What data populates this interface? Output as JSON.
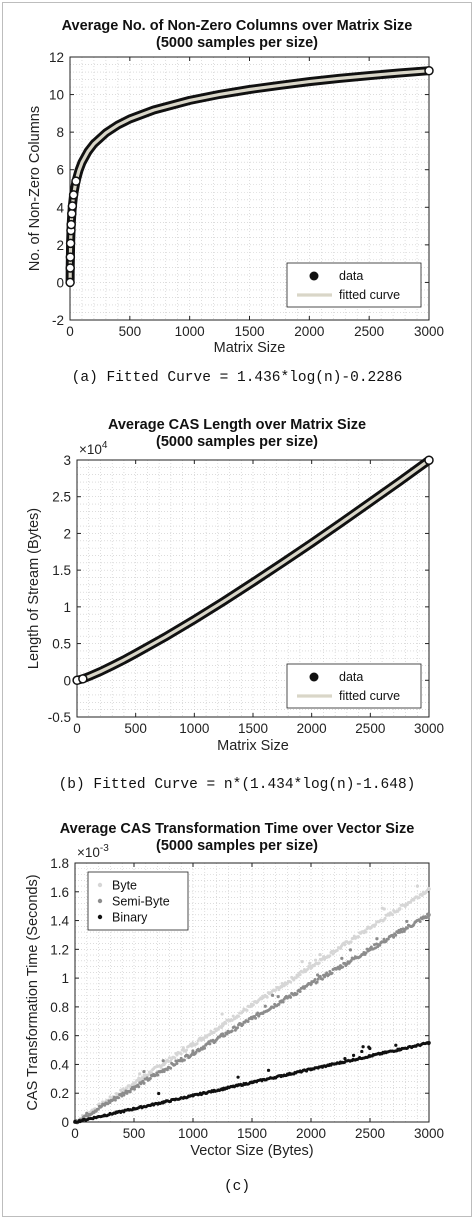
{
  "captions": [
    "(a) Fitted Curve = 1.436*log(n)-0.2286",
    "(b) Fitted Curve = n*(1.434*log(n)-1.648)",
    "(c)"
  ],
  "colors": {
    "data_marker": "#111111",
    "fitted_curve": "#d9d6c8",
    "byte": "#d6d6d6",
    "semi_byte": "#8c8c8c",
    "binary": "#111111"
  },
  "chart_data": [
    {
      "type": "line",
      "title": "Average No. of Non-Zero Columns over Matrix Size",
      "subtitle": "(5000 samples per size)",
      "xlabel": "Matrix Size",
      "ylabel": "No. of Non-Zero Columns",
      "xlim": [
        0,
        3000
      ],
      "ylim": [
        -2,
        12
      ],
      "xticks": [
        "0",
        "500",
        "1000",
        "1500",
        "2000",
        "2500",
        "3000"
      ],
      "yticks": [
        "-2",
        "0",
        "2",
        "4",
        "6",
        "8",
        "10",
        "12"
      ],
      "grid": "minor dotted",
      "legend_position": "bottom-right",
      "series": [
        {
          "name": "data",
          "style": "markers",
          "x": [
            1,
            2,
            3,
            5,
            8,
            10,
            15,
            20,
            30,
            50,
            75,
            100,
            150,
            200,
            300,
            400,
            500,
            700,
            1000,
            1250,
            1500,
            1750,
            2000,
            2250,
            2500,
            2750,
            3000
          ],
          "y": [
            0,
            0.77,
            1.35,
            2.08,
            2.76,
            3.08,
            3.66,
            4.07,
            4.66,
            5.39,
            5.97,
            6.39,
            6.97,
            7.38,
            7.96,
            8.38,
            8.7,
            9.18,
            9.69,
            10.01,
            10.27,
            10.49,
            10.69,
            10.86,
            11.01,
            11.15,
            11.27
          ]
        },
        {
          "name": "fitted curve",
          "style": "line",
          "x": [
            1,
            2,
            3,
            5,
            8,
            10,
            15,
            20,
            30,
            50,
            75,
            100,
            150,
            200,
            300,
            400,
            500,
            700,
            1000,
            1250,
            1500,
            1750,
            2000,
            2250,
            2500,
            2750,
            3000
          ],
          "y": [
            -0.23,
            0.77,
            1.35,
            2.08,
            2.76,
            3.08,
            3.66,
            4.07,
            4.66,
            5.39,
            5.97,
            6.39,
            6.97,
            7.38,
            7.96,
            8.38,
            8.7,
            9.18,
            9.69,
            10.01,
            10.27,
            10.49,
            10.69,
            10.86,
            11.01,
            11.15,
            11.27
          ]
        }
      ]
    },
    {
      "type": "line",
      "title": "Average CAS Length over Matrix Size",
      "subtitle": "(5000 samples per size)",
      "xlabel": "Matrix Size",
      "ylabel": "Length of Stream (Bytes)",
      "y_exponent_label": "×10^4",
      "xlim": [
        0,
        3000
      ],
      "ylim": [
        -0.5,
        3
      ],
      "xticks": [
        "0",
        "500",
        "1000",
        "1500",
        "2000",
        "2500",
        "3000"
      ],
      "yticks": [
        "-0.5",
        "0",
        "0.5",
        "1",
        "1.5",
        "2",
        "2.5",
        "3"
      ],
      "grid": "minor dotted",
      "legend_position": "bottom-right",
      "series": [
        {
          "name": "data",
          "style": "markers",
          "x": [
            1,
            50,
            100,
            200,
            300,
            400,
            500,
            750,
            1000,
            1250,
            1500,
            1750,
            2000,
            2250,
            2500,
            2750,
            3000
          ],
          "y": [
            0,
            0.02,
            0.0496,
            0.119,
            0.197,
            0.278,
            0.365,
            0.588,
            0.826,
            1.076,
            1.334,
            1.598,
            1.868,
            2.145,
            2.425,
            2.709,
            2.997
          ]
        },
        {
          "name": "fitted curve",
          "style": "line",
          "x": [
            1,
            50,
            100,
            200,
            300,
            400,
            500,
            750,
            1000,
            1250,
            1500,
            1750,
            2000,
            2250,
            2500,
            2750,
            3000
          ],
          "y": [
            0,
            0.02,
            0.0496,
            0.119,
            0.197,
            0.278,
            0.365,
            0.588,
            0.826,
            1.076,
            1.334,
            1.598,
            1.868,
            2.145,
            2.425,
            2.709,
            2.997
          ]
        }
      ]
    },
    {
      "type": "scatter",
      "title": "Average CAS Transformation Time over Vector Size",
      "subtitle": "(5000 samples per size)",
      "xlabel": "Vector Size (Bytes)",
      "ylabel": "CAS Transformation Time (Seconds)",
      "y_exponent_label": "×10^-3",
      "xlim": [
        0,
        3000
      ],
      "ylim": [
        0,
        1.8
      ],
      "xticks": [
        "0",
        "500",
        "1000",
        "1500",
        "2000",
        "2500",
        "3000"
      ],
      "yticks": [
        "0",
        "0.2",
        "0.4",
        "0.6",
        "0.8",
        "1",
        "1.2",
        "1.4",
        "1.6",
        "1.8"
      ],
      "grid": "minor dotted",
      "legend_position": "top-left",
      "series": [
        {
          "name": "Byte",
          "x": [
            0,
            250,
            500,
            750,
            1000,
            1250,
            1500,
            1750,
            2000,
            2250,
            2500,
            2750,
            3000
          ],
          "y": [
            0,
            0.13,
            0.27,
            0.4,
            0.54,
            0.67,
            0.81,
            0.94,
            1.08,
            1.21,
            1.35,
            1.48,
            1.62
          ]
        },
        {
          "name": "Semi-Byte",
          "x": [
            0,
            250,
            500,
            750,
            1000,
            1250,
            1500,
            1750,
            2000,
            2250,
            2500,
            2750,
            3000
          ],
          "y": [
            0,
            0.12,
            0.24,
            0.36,
            0.48,
            0.6,
            0.72,
            0.84,
            0.96,
            1.08,
            1.2,
            1.32,
            1.44
          ]
        },
        {
          "name": "Binary",
          "x": [
            0,
            250,
            500,
            750,
            1000,
            1250,
            1500,
            1750,
            2000,
            2250,
            2500,
            2750,
            3000
          ],
          "y": [
            0,
            0.046,
            0.092,
            0.138,
            0.183,
            0.229,
            0.275,
            0.321,
            0.367,
            0.413,
            0.458,
            0.504,
            0.55
          ]
        }
      ]
    }
  ]
}
